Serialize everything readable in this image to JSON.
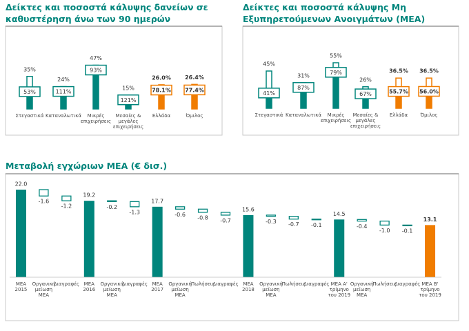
{
  "chart_data": [
    {
      "type": "coverage",
      "title": "Δείκτες και ποσοστά κάλυψης δανείων σε\nκαθυστέρηση άνω των 90 ημερών",
      "categories": [
        "Στεγαστικά",
        "Καταναλωτικά",
        "Μικρές\nεπιχειρήσεις",
        "Μεσαίες &\nμεγάλες\nεπιχειρήσεις",
        "Ελλάδα",
        "Όμιλος"
      ],
      "values": [
        35,
        24,
        47,
        15,
        26,
        26.4
      ],
      "value_labels": [
        "35%",
        "24%",
        "47%",
        "15%",
        "26.0%",
        "26.4%"
      ],
      "coverage": [
        53,
        111,
        93,
        121,
        78.1,
        77.4
      ],
      "coverage_labels": [
        "53%",
        "111%",
        "93%",
        "121%",
        "78.1%",
        "77.4%"
      ],
      "colors": [
        "#00857c",
        "#00857c",
        "#00857c",
        "#00857c",
        "#f07c00",
        "#f07c00"
      ]
    },
    {
      "type": "coverage",
      "title": "Δείκτες και ποσοστά κάλυψης Μη\nΕξυπηρετούμενων Ανοιγμάτων (ΜΕΑ)",
      "categories": [
        "Στεγαστικά",
        "Καταναλωτικά",
        "Μικρές\nεπιχειρήσεις",
        "Μεσαίες &\nμεγάλες\nεπιχειρήσεις",
        "Ελλάδα",
        "Όμιλος"
      ],
      "values": [
        45,
        31,
        55,
        26,
        36.5,
        36.5
      ],
      "value_labels": [
        "45%",
        "31%",
        "55%",
        "26%",
        "36.5%",
        "36.5%"
      ],
      "coverage": [
        41,
        87,
        79,
        67,
        55.7,
        56
      ],
      "coverage_labels": [
        "41%",
        "87%",
        "79%",
        "67%",
        "55.7%",
        "56.0%"
      ],
      "colors": [
        "#00857c",
        "#00857c",
        "#00857c",
        "#00857c",
        "#f07c00",
        "#f07c00"
      ]
    },
    {
      "type": "waterfall",
      "title": "Μεταβολή εγχώριων ΜΕΑ (€ δισ.)",
      "categories": [
        "ΜΕΑ\n2015",
        "Οργανική\nμείωση\nΜΕΑ",
        "Διαγραφές",
        "ΜΕΑ\n2016",
        "Οργανική\nμείωση\nΜΕΑ",
        "Διαγραφές",
        "ΜΕΑ\n2017",
        "Οργανική\nμείωση\nΜΕΑ",
        "Πωλήσεις",
        "Διαγραφές",
        "ΜΕΑ\n2018",
        "Οργανική\nμείωση\nΜΕΑ",
        "Πωλήσεις",
        "Διαγραφές",
        "ΜΕΑ Α'\nτρίμηνο\nτου 2019",
        "Οργανική\nμείωση\nΜΕΑ",
        "Πωλήσεις",
        "Διαγραφές",
        "ΜΕΑ Β'\nτρίμηνο\nτου 2019"
      ],
      "values": [
        22,
        -1.6,
        -1.2,
        19.2,
        -0.2,
        -1.3,
        17.7,
        -0.6,
        -0.8,
        -0.7,
        15.6,
        -0.3,
        -0.7,
        -0.1,
        14.5,
        -0.4,
        -1,
        -0.1,
        13.1
      ],
      "value_labels": [
        "22.0",
        "-1.6",
        "-1.2",
        "19.2",
        "-0.2",
        "-1.3",
        "17.7",
        "-0.6",
        "-0.8",
        "-0.7",
        "15.6",
        "-0.3",
        "-0.7",
        "-0.1",
        "14.5",
        "-0.4",
        "-1.0",
        "-0.1",
        "13.1"
      ],
      "colors": [
        "#00857c",
        "#ffffff",
        "#ffffff",
        "#00857c",
        "#ffffff",
        "#ffffff",
        "#00857c",
        "#ffffff",
        "#ffffff",
        "#ffffff",
        "#00857c",
        "#ffffff",
        "#ffffff",
        "#ffffff",
        "#00857c",
        "#ffffff",
        "#ffffff",
        "#ffffff",
        "#f07c00"
      ],
      "border_color": "#00857c"
    }
  ]
}
